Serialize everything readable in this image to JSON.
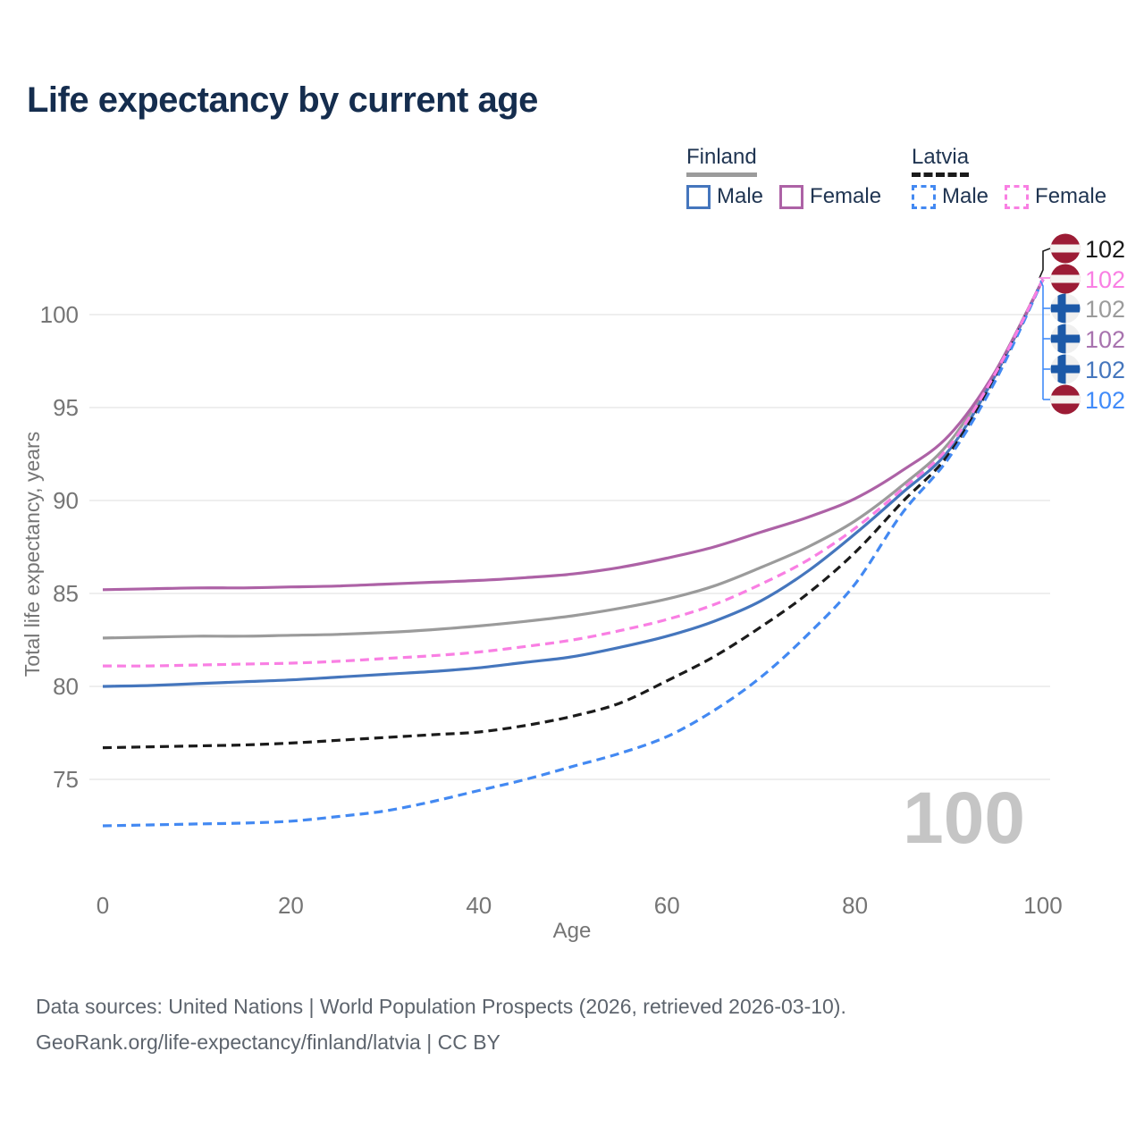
{
  "title": "Life expectancy by current age",
  "legend": {
    "finland": {
      "country": "Finland",
      "male_label": "Male",
      "female_label": "Female"
    },
    "latvia": {
      "country": "Latvia",
      "male_label": "Male",
      "female_label": "Female"
    }
  },
  "chart_data": {
    "type": "line",
    "title": "Life expectancy by current age",
    "xlabel": "Age",
    "ylabel": "Total life expectancy, years",
    "x": [
      0,
      5,
      10,
      15,
      20,
      25,
      30,
      35,
      40,
      45,
      50,
      55,
      60,
      65,
      70,
      75,
      80,
      85,
      90,
      95,
      100
    ],
    "series": [
      {
        "name": "Finland Male",
        "country": "Finland",
        "sex": "male",
        "style": "solid",
        "color": "#4576bd",
        "values": [
          80.0,
          80.05,
          80.15,
          80.25,
          80.35,
          80.5,
          80.65,
          80.8,
          81.0,
          81.3,
          81.6,
          82.1,
          82.7,
          83.5,
          84.6,
          86.2,
          88.2,
          90.4,
          92.7,
          96.8,
          101.9
        ]
      },
      {
        "name": "Finland Female",
        "country": "Finland",
        "sex": "female",
        "style": "solid",
        "color": "#ad62a6",
        "values": [
          85.2,
          85.25,
          85.3,
          85.3,
          85.35,
          85.4,
          85.5,
          85.6,
          85.7,
          85.85,
          86.05,
          86.4,
          86.9,
          87.5,
          88.3,
          89.1,
          90.1,
          91.6,
          93.5,
          97.0,
          101.9
        ]
      },
      {
        "name": "Finland Both sexes",
        "country": "Finland",
        "sex": "both",
        "style": "solid",
        "color": "#9b9b9b",
        "values": [
          82.6,
          82.65,
          82.7,
          82.7,
          82.75,
          82.8,
          82.9,
          83.05,
          83.25,
          83.5,
          83.8,
          84.2,
          84.7,
          85.4,
          86.4,
          87.5,
          88.9,
          90.8,
          93.1,
          97.0,
          101.9
        ]
      },
      {
        "name": "Latvia Male",
        "country": "Latvia",
        "sex": "male",
        "style": "dashed",
        "color": "#4389f2",
        "values": [
          72.5,
          72.55,
          72.6,
          72.65,
          72.75,
          73.0,
          73.3,
          73.8,
          74.4,
          75.0,
          75.7,
          76.4,
          77.3,
          78.7,
          80.5,
          82.8,
          85.5,
          89.3,
          92.3,
          96.5,
          101.9
        ]
      },
      {
        "name": "Latvia Female",
        "country": "Latvia",
        "sex": "female",
        "style": "dashed",
        "color": "#f97fe3",
        "values": [
          81.1,
          81.1,
          81.15,
          81.2,
          81.25,
          81.35,
          81.5,
          81.65,
          81.85,
          82.15,
          82.5,
          83.0,
          83.6,
          84.4,
          85.5,
          86.8,
          88.5,
          90.6,
          92.9,
          96.9,
          101.9
        ]
      },
      {
        "name": "Latvia Both sexes",
        "country": "Latvia",
        "sex": "both",
        "style": "dashed",
        "color": "#1b1b1b",
        "values": [
          76.7,
          76.75,
          76.8,
          76.85,
          76.95,
          77.1,
          77.25,
          77.4,
          77.55,
          77.9,
          78.4,
          79.1,
          80.3,
          81.6,
          83.2,
          85.0,
          87.2,
          89.9,
          92.5,
          96.7,
          101.9
        ]
      }
    ],
    "xlim": [
      0,
      100
    ],
    "ylim": [
      71,
      103
    ],
    "xticks": [
      0,
      20,
      40,
      60,
      80,
      100
    ],
    "yticks": [
      75,
      80,
      85,
      90,
      95,
      100
    ],
    "grid": true,
    "legend_position": "top-right",
    "end_labels": [
      {
        "label": "102",
        "flag": "latvia",
        "series": "Latvia Both sexes",
        "color": "#1b1b1b"
      },
      {
        "label": "102",
        "flag": "latvia",
        "series": "Latvia Female",
        "color": "#f97fe3"
      },
      {
        "label": "102",
        "flag": "finland",
        "series": "Finland Both sexes",
        "color": "#9b9b9b"
      },
      {
        "label": "102",
        "flag": "finland",
        "series": "Finland Female",
        "color": "#a873ae"
      },
      {
        "label": "102",
        "flag": "finland",
        "series": "Finland Male",
        "color": "#4576bd"
      },
      {
        "label": "102",
        "flag": "latvia",
        "series": "Latvia Male",
        "color": "#418bf9"
      }
    ],
    "watermark": "100",
    "colors": {
      "grid": "#e9e9e9",
      "axis_text": "#757575",
      "watermark": "#c5c5c5",
      "latvia_flag_red": "#9c1c35",
      "latvia_flag_white": "#f5f3f0",
      "finland_flag_blue": "#1c59a8",
      "finland_flag_bg": "#efefef"
    }
  },
  "footer": {
    "line1": "Data sources: United Nations | World Population Prospects (2026, retrieved 2026-03-10).",
    "line2": "GeoRank.org/life-expectancy/finland/latvia | CC BY"
  }
}
